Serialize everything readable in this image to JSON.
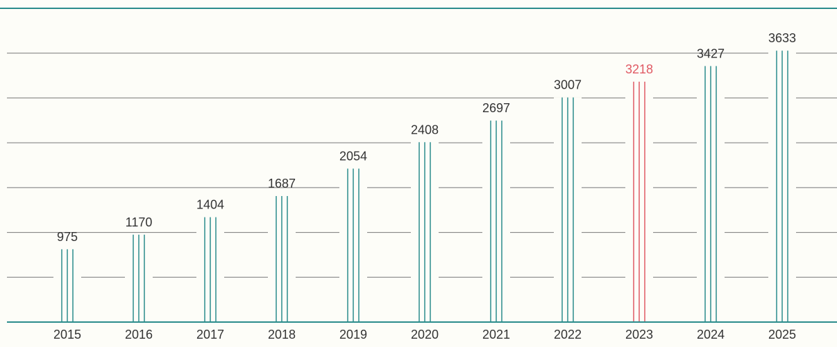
{
  "chart_data": {
    "type": "bar",
    "categories": [
      "2015",
      "2016",
      "2017",
      "2018",
      "2019",
      "2020",
      "2021",
      "2022",
      "2023",
      "2024",
      "2025"
    ],
    "values": [
      975,
      1170,
      1404,
      1687,
      2054,
      2408,
      2697,
      3007,
      3218,
      3427,
      3633
    ],
    "colors": [
      "#2b8c8c",
      "#2b8c8c",
      "#2b8c8c",
      "#2b8c8c",
      "#2b8c8c",
      "#2b8c8c",
      "#2b8c8c",
      "#2b8c8c",
      "#e05a64",
      "#2b8c8c",
      "#2b8c8c"
    ],
    "ylim": [
      0,
      4200
    ],
    "yticks": [
      0,
      600,
      1200,
      1800,
      2400,
      3000,
      3600
    ],
    "grid": true
  }
}
